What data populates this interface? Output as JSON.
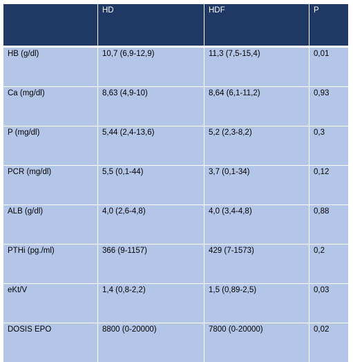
{
  "table": {
    "columns": [
      "",
      "HD",
      "HDF",
      "P"
    ],
    "rows": [
      {
        "param": "HB (g/dl)",
        "hd": "10,7 (6,9-12,9)",
        "hdf": "11,3 (7,5-15,4)",
        "p": "0,01"
      },
      {
        "param": "Ca (mg/dl)",
        "hd": "8,63 (4,9-10)",
        "hdf": "8,64 (6,1-11,2)",
        "p": "0,93"
      },
      {
        "param": "P (mg/dl)",
        "hd": "5,44 (2,4-13,6)",
        "hdf": "5,2 (2,3-8,2)",
        "p": "0,3"
      },
      {
        "param": "PCR (mg/dl)",
        "hd": "5,5 (0,1-44)",
        "hdf": "3,7 (0,1-34)",
        "p": "0,12"
      },
      {
        "param": "ALB (g/dl)",
        "hd": "4,0 (2,6-4,8)",
        "hdf": "4,0 (3,4-4,8)",
        "p": "0,88"
      },
      {
        "param": "PTHi (pg./ml)",
        "hd": "366 (9-1157)",
        "hdf": "429 (7-1573)",
        "p": "0,2"
      },
      {
        "param": "eKt/V",
        "hd": "1,4 (0,8-2,2)",
        "hdf": "1,5 (0,89-2,5)",
        "p": "0,03"
      },
      {
        "param": "DOSIS EPO",
        "hd": "8800 (0-20000)",
        "hdf": "7800 (0-20000)",
        "p": "0,02"
      }
    ]
  },
  "colors": {
    "header_bg": "#1f3864",
    "body_bg": "#b4c6e7",
    "header_text": "#ffffff",
    "body_text": "#000000"
  }
}
